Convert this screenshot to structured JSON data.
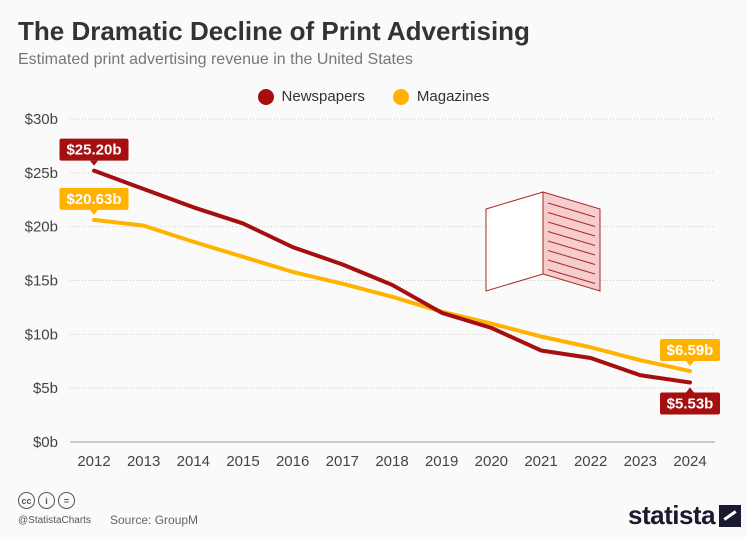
{
  "title": "The Dramatic Decline of Print Advertising",
  "subtitle": "Estimated print advertising revenue in the United States",
  "footer": {
    "handle": "@StatistaCharts",
    "source": "Source: GroupM",
    "logo": "statista",
    "license_icons": [
      "cc-icon",
      "by-icon",
      "nd-icon"
    ],
    "license_glyphs": [
      "cc",
      "i",
      "="
    ]
  },
  "chart_data": {
    "type": "line",
    "title": "The Dramatic Decline of Print Advertising",
    "x": [
      2012,
      2013,
      2014,
      2015,
      2016,
      2017,
      2018,
      2019,
      2020,
      2021,
      2022,
      2023,
      2024
    ],
    "ylim": [
      0,
      30
    ],
    "yticks": [
      0,
      5,
      10,
      15,
      20,
      25,
      30
    ],
    "ytick_labels": [
      "$0b",
      "$5b",
      "$10b",
      "$15b",
      "$20b",
      "$25b",
      "$30b"
    ],
    "grid": true,
    "legend_position": "top-center",
    "series": [
      {
        "name": "Newspapers",
        "color": "#a50f0f",
        "values": [
          25.2,
          23.5,
          21.8,
          20.3,
          18.1,
          16.5,
          14.6,
          12.0,
          10.6,
          8.5,
          7.8,
          6.2,
          5.53
        ],
        "labels": [
          {
            "index": 0,
            "text": "$25.20b",
            "pos": "above"
          },
          {
            "index": 12,
            "text": "$5.53b",
            "pos": "below"
          }
        ]
      },
      {
        "name": "Magazines",
        "color": "#ffb300",
        "values": [
          20.63,
          20.1,
          18.6,
          17.2,
          15.8,
          14.7,
          13.5,
          12.1,
          11.0,
          9.8,
          8.8,
          7.6,
          6.59
        ],
        "labels": [
          {
            "index": 0,
            "text": "$20.63b",
            "pos": "above"
          },
          {
            "index": 12,
            "text": "$6.59b",
            "pos": "above"
          }
        ]
      }
    ]
  }
}
